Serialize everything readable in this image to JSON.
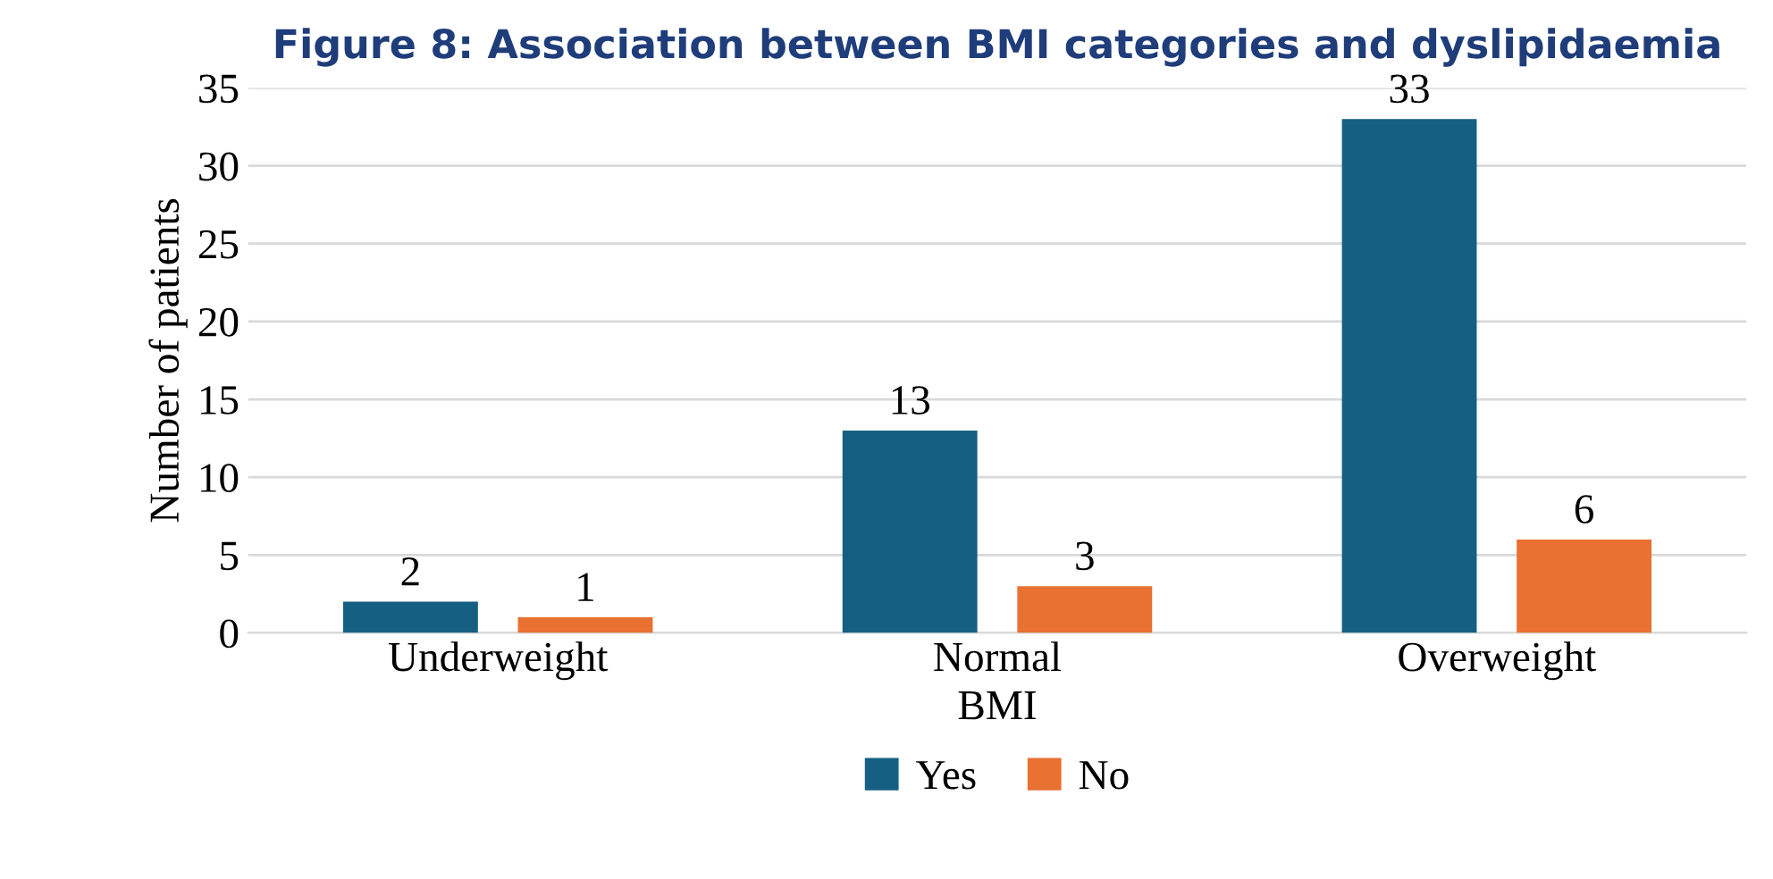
{
  "chart_data": {
    "type": "bar",
    "title": "Figure 8: Association between BMI categories and dyslipidaemia",
    "xlabel": "BMI",
    "ylabel": "Number of patients",
    "categories": [
      "Underweight",
      "Normal",
      "Overweight"
    ],
    "series": [
      {
        "name": "Yes",
        "color": "#156082",
        "values": [
          2,
          13,
          33
        ]
      },
      {
        "name": "No",
        "color": "#e97132",
        "values": [
          1,
          3,
          6
        ]
      }
    ],
    "ylim": [
      0,
      35
    ],
    "yticks": [
      0,
      5,
      10,
      15,
      20,
      25,
      30,
      35
    ],
    "grid": "y",
    "legend": "bottom",
    "data_labels": true
  }
}
